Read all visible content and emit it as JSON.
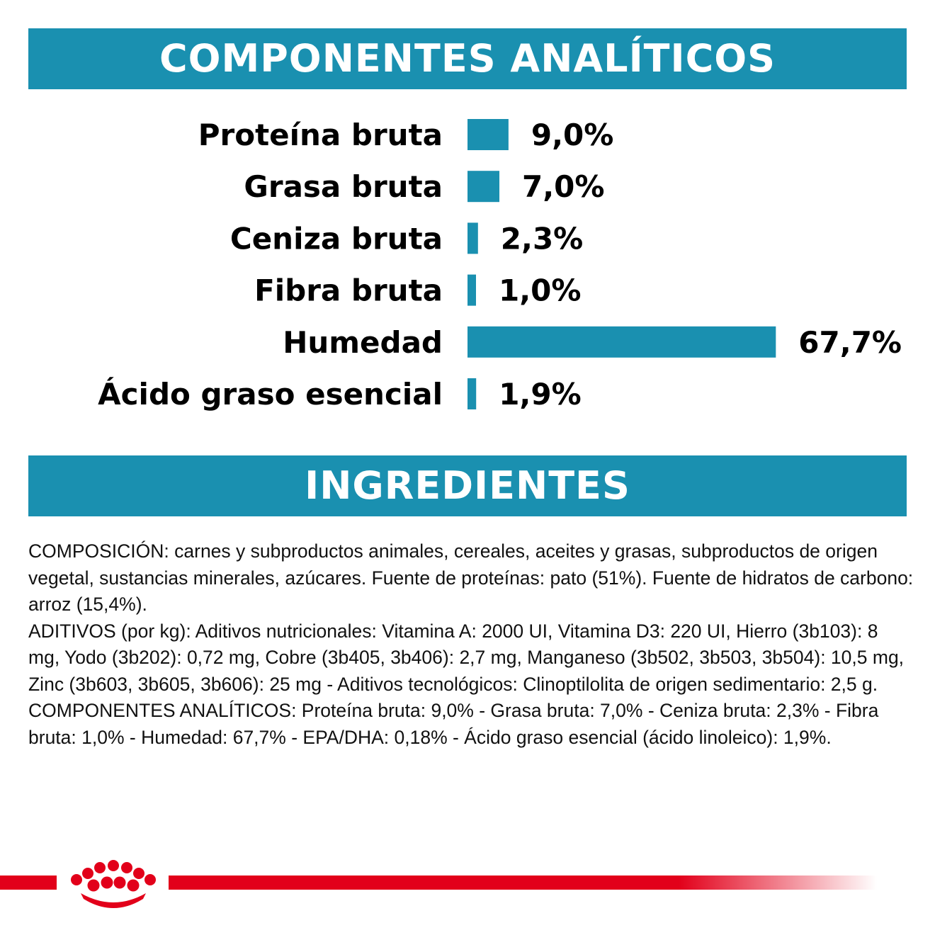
{
  "header_analytic": "COMPONENTES ANALÍTICOS",
  "header_ingredients": "INGREDIENTES",
  "chart_data": {
    "type": "bar",
    "orientation": "horizontal",
    "categories": [
      "Proteína bruta",
      "Grasa bruta",
      "Ceniza bruta",
      "Fibra bruta",
      "Humedad",
      "Ácido graso esencial"
    ],
    "values": [
      9.0,
      7.0,
      2.3,
      1.0,
      67.7,
      1.9
    ],
    "value_labels": [
      "9,0%",
      "7,0%",
      "2,3%",
      "1,0%",
      "67,7%",
      "1,9%"
    ],
    "bar_color": "#1a90b0",
    "grid": false
  },
  "ingredients": {
    "composicion": "COMPOSICIÓN: carnes y subproductos animales, cereales, aceites y grasas, subproductos de origen vegetal, sustancias minerales, azúcares. Fuente de proteínas: pato (51%). Fuente de hidratos de carbono: arroz (15,4%).",
    "aditivos": "ADITIVOS (por kg): Aditivos nutricionales: Vitamina A: 2000 UI, Vitamina D3: 220 UI, Hierro (3b103): 8 mg, Yodo (3b202): 0,72 mg, Cobre (3b405, 3b406): 2,7 mg, Manganeso (3b502, 3b503, 3b504): 10,5 mg, Zinc (3b603, 3b605, 3b606): 25 mg - Aditivos tecnológicos: Clinoptilolita de origen sedimentario: 2,5 g.",
    "componentes": "COMPONENTES ANALÍTICOS: Proteína bruta: 9,0% - Grasa bruta: 7,0% - Ceniza bruta: 2,3% - Fibra bruta: 1,0% - Humedad: 67,7% - EPA/DHA: 0,18% - Ácido graso esencial (ácido linoleico): 1,9%."
  },
  "brand_color": "#e2001a",
  "icons": {
    "logo": "royal-canin-crown-logo"
  }
}
